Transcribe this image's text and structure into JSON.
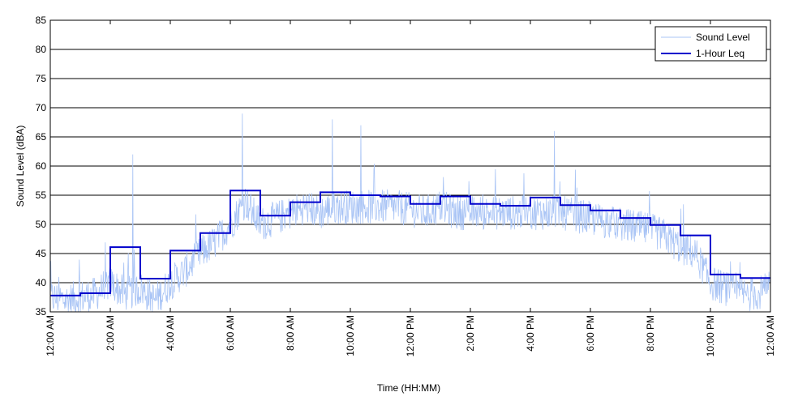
{
  "chart_data": {
    "type": "line",
    "xlabel": "Time (HH:MM)",
    "ylabel": "Sound Level (dBA)",
    "ylim": [
      35,
      85
    ],
    "xlim": [
      "12:00 AM",
      "12:00 AM"
    ],
    "yticks": [
      "35",
      "40",
      "45",
      "50",
      "55",
      "60",
      "65",
      "70",
      "75",
      "80",
      "85"
    ],
    "xticks": [
      "12:00 AM",
      "2:00 AM",
      "4:00 AM",
      "6:00 AM",
      "8:00 AM",
      "10:00 AM",
      "12:00 PM",
      "2:00 PM",
      "4:00 PM",
      "6:00 PM",
      "8:00 PM",
      "10:00 PM",
      "12:00 AM"
    ],
    "grid": "horizontal",
    "legend": {
      "position": "top-right",
      "entries": [
        "Sound Level",
        "1-Hour Leq"
      ]
    },
    "series": [
      {
        "name": "Sound Level",
        "color": "#a9c4f5",
        "x_hours": [
          0,
          0.5,
          1,
          1.5,
          2,
          2.5,
          3,
          3.5,
          4,
          4.5,
          5,
          5.5,
          6,
          6.5,
          7,
          7.5,
          8,
          8.5,
          9,
          9.5,
          10,
          10.5,
          11,
          11.5,
          12,
          12.5,
          13,
          13.5,
          14,
          14.5,
          15,
          15.5,
          16,
          16.5,
          17,
          17.5,
          18,
          18.5,
          19,
          19.5,
          20,
          20.5,
          21,
          21.5,
          22,
          22.5,
          23,
          23.5,
          24
        ],
        "values": [
          37.5,
          37,
          37.5,
          38,
          40,
          38,
          39,
          37,
          40,
          42,
          45,
          47,
          50,
          54,
          50,
          51,
          52,
          53,
          52,
          53,
          53,
          53,
          53,
          53,
          52.5,
          52,
          53,
          52,
          52,
          52,
          52,
          52,
          52,
          52,
          52,
          51.5,
          51,
          50.5,
          50,
          49.5,
          49,
          48,
          46,
          45,
          40,
          39,
          38,
          38,
          39
        ],
        "peaks": [
          {
            "x_hours": 2.75,
            "value": 62
          },
          {
            "x_hours": 6.4,
            "value": 69
          },
          {
            "x_hours": 9.4,
            "value": 68
          },
          {
            "x_hours": 10.35,
            "value": 67
          },
          {
            "x_hours": 16.8,
            "value": 66
          }
        ]
      },
      {
        "name": "1-Hour Leq",
        "color": "#0000cc",
        "hour_start": [
          0,
          1,
          2,
          3,
          4,
          5,
          6,
          7,
          8,
          9,
          10,
          11,
          12,
          13,
          14,
          15,
          16,
          17,
          18,
          19,
          20,
          21,
          22,
          23
        ],
        "values": [
          37.8,
          38.2,
          46.1,
          40.7,
          45.5,
          48.5,
          55.8,
          51.5,
          53.8,
          55.5,
          55.0,
          54.8,
          53.5,
          54.8,
          53.5,
          53.2,
          54.6,
          53.3,
          52.4,
          51.1,
          49.9,
          48.1,
          41.4,
          40.8
        ]
      }
    ]
  }
}
